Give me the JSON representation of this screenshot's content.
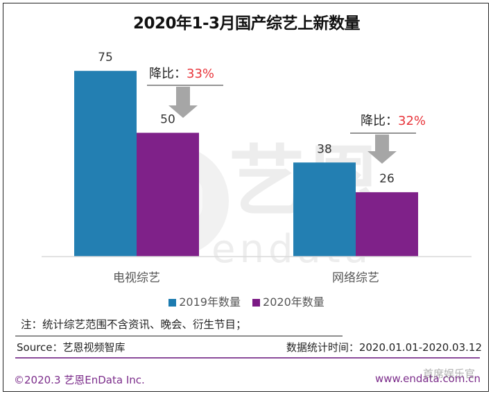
{
  "chart_data": {
    "type": "bar",
    "title": "2020年1-3月国产综艺上新数量",
    "categories": [
      "电视综艺",
      "网络综艺"
    ],
    "series": [
      {
        "name": "2019年数量",
        "color": "#1c7bb0",
        "values": [
          75,
          38
        ]
      },
      {
        "name": "2020年数量",
        "color": "#7b1a85",
        "values": [
          50,
          26
        ]
      }
    ],
    "ylim": [
      0,
      80
    ],
    "grid": false,
    "legend_position": "bottom",
    "annotations": [
      {
        "category": "电视综艺",
        "label": "降比：",
        "value": "33%"
      },
      {
        "category": "网络综艺",
        "label": "降比：",
        "value": "32%"
      }
    ],
    "xlabel": "",
    "ylabel": ""
  },
  "colors": {
    "series_2019": "#1c7bb0",
    "series_2020": "#7b1a85",
    "decline_text": "#e8343a",
    "arrow": "#a6a6a6",
    "brand": "#7b2c8a"
  },
  "watermark": {
    "text": "艺恩",
    "subtext": "endata"
  },
  "footer": {
    "note": "注：统计综艺范围不含资讯、晚会、衍生节目；",
    "source": "Source：艺恩视频智库",
    "stat_time": "数据统计时间：2020.01.01-2020.03.12",
    "copyright": "©2020.3 艺恩EnData Inc.",
    "website": "www.endata.com.cn",
    "overlay_watermark": "首席娱乐官"
  }
}
